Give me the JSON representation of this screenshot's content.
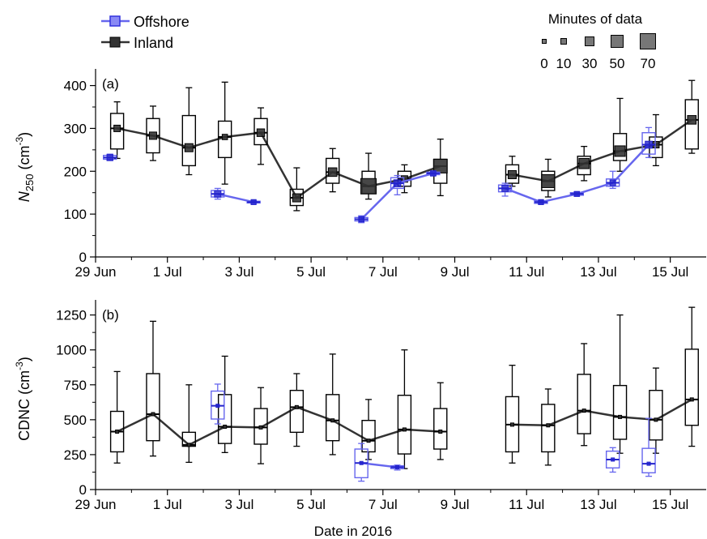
{
  "colors": {
    "offshore": "#6666ee",
    "offshore_marker": "#2222cc",
    "inland": "#333333"
  },
  "legend": {
    "offshore": "Offshore",
    "inland": "Inland"
  },
  "minutes_legend": {
    "title": "Minutes of data",
    "labels": [
      "0",
      "10",
      "30",
      "50",
      "70"
    ],
    "values": [
      0,
      10,
      30,
      50,
      70
    ]
  },
  "xlabel": "Date in 2016",
  "chart_data": [
    {
      "type": "box",
      "panel_label": "(a)",
      "ylabel_main": "N",
      "ylabel_sub": "250",
      "ylabel_unit": " (cm",
      "ylabel_exp": "-3",
      "ylabel_close": ")",
      "ylim": [
        0,
        420
      ],
      "yticks": [
        0,
        100,
        200,
        300,
        400
      ],
      "xlim": [
        0,
        17
      ],
      "xticks": [
        0,
        2,
        4,
        6,
        8,
        10,
        12,
        14,
        16
      ],
      "xtick_labels": [
        "29 Jun",
        "1 Jul",
        "3 Jul",
        "5 Jul",
        "7 Jul",
        "9 Jul",
        "11 Jul",
        "13 Jul",
        "15 Jul"
      ],
      "series": [
        {
          "name": "Inland",
          "points": [
            {
              "x": 0.6,
              "median": 300,
              "q1": 252,
              "q3": 335,
              "lo": 230,
              "hi": 362,
              "minutes": 15
            },
            {
              "x": 1.6,
              "median": 283,
              "q1": 243,
              "q3": 323,
              "lo": 225,
              "hi": 352,
              "minutes": 20
            },
            {
              "x": 2.6,
              "median": 255,
              "q1": 213,
              "q3": 330,
              "lo": 192,
              "hi": 395,
              "minutes": 25
            },
            {
              "x": 3.6,
              "median": 280,
              "q1": 232,
              "q3": 317,
              "lo": 170,
              "hi": 408,
              "minutes": 8
            },
            {
              "x": 4.6,
              "median": 290,
              "q1": 262,
              "q3": 323,
              "lo": 216,
              "hi": 348,
              "minutes": 22
            },
            {
              "x": 5.6,
              "median": 138,
              "q1": 120,
              "q3": 158,
              "lo": 108,
              "hi": 208,
              "minutes": 25
            },
            {
              "x": 6.6,
              "median": 198,
              "q1": 172,
              "q3": 230,
              "lo": 152,
              "hi": 253,
              "minutes": 28
            },
            {
              "x": 7.6,
              "median": 165,
              "q1": 148,
              "q3": 200,
              "lo": 135,
              "hi": 242,
              "minutes": 70
            },
            {
              "x": 8.6,
              "median": 182,
              "q1": 165,
              "q3": 200,
              "lo": 150,
              "hi": 215,
              "minutes": 15
            },
            {
              "x": 9.6,
              "median": 212,
              "q1": 172,
              "q3": 228,
              "lo": 143,
              "hi": 275,
              "minutes": 60
            },
            {
              "x": 11.6,
              "median": 192,
              "q1": 172,
              "q3": 215,
              "lo": 165,
              "hi": 235,
              "minutes": 25
            },
            {
              "x": 12.6,
              "median": 177,
              "q1": 155,
              "q3": 200,
              "lo": 140,
              "hi": 228,
              "minutes": 55
            },
            {
              "x": 13.6,
              "median": 218,
              "q1": 192,
              "q3": 235,
              "lo": 178,
              "hi": 258,
              "minutes": 38
            },
            {
              "x": 14.6,
              "median": 247,
              "q1": 225,
              "q3": 288,
              "lo": 200,
              "hi": 370,
              "minutes": 40
            },
            {
              "x": 15.6,
              "median": 262,
              "q1": 232,
              "q3": 280,
              "lo": 213,
              "hi": 332,
              "minutes": 15
            },
            {
              "x": 16.6,
              "median": 320,
              "q1": 252,
              "q3": 367,
              "lo": 242,
              "hi": 412,
              "minutes": 28
            }
          ],
          "line_segments": [
            [
              0,
              9
            ],
            [
              10,
              15
            ]
          ]
        },
        {
          "name": "Offshore",
          "points": [
            {
              "x": 0.4,
              "median": 232,
              "q1": 228,
              "q3": 237,
              "lo": 225,
              "hi": 240,
              "minutes": 12
            },
            {
              "x": 3.4,
              "median": 147,
              "q1": 140,
              "q3": 155,
              "lo": 135,
              "hi": 160,
              "minutes": 15
            },
            {
              "x": 4.4,
              "median": 128,
              "q1": 126,
              "q3": 130,
              "lo": 125,
              "hi": 131,
              "minutes": 6
            },
            {
              "x": 7.4,
              "median": 88,
              "q1": 84,
              "q3": 92,
              "lo": 80,
              "hi": 96,
              "minutes": 8
            },
            {
              "x": 8.4,
              "median": 172,
              "q1": 160,
              "q3": 185,
              "lo": 145,
              "hi": 190,
              "minutes": 18
            },
            {
              "x": 9.4,
              "median": 195,
              "q1": 192,
              "q3": 198,
              "lo": 190,
              "hi": 200,
              "minutes": 8
            },
            {
              "x": 11.4,
              "median": 160,
              "q1": 152,
              "q3": 168,
              "lo": 142,
              "hi": 172,
              "minutes": 14
            },
            {
              "x": 12.4,
              "median": 128,
              "q1": 125,
              "q3": 131,
              "lo": 124,
              "hi": 132,
              "minutes": 6
            },
            {
              "x": 13.4,
              "median": 147,
              "q1": 144,
              "q3": 150,
              "lo": 142,
              "hi": 152,
              "minutes": 6
            },
            {
              "x": 14.4,
              "median": 173,
              "q1": 165,
              "q3": 182,
              "lo": 160,
              "hi": 200,
              "minutes": 10
            },
            {
              "x": 15.4,
              "median": 262,
              "q1": 240,
              "q3": 290,
              "lo": 232,
              "hi": 302,
              "minutes": 18
            }
          ],
          "line_segments": [
            [
              0,
              0
            ],
            [
              1,
              2
            ],
            [
              3,
              5
            ],
            [
              6,
              10
            ]
          ]
        }
      ]
    },
    {
      "type": "box",
      "panel_label": "(b)",
      "ylabel_main": "CDNC",
      "ylabel_sub": "",
      "ylabel_unit": " (cm",
      "ylabel_exp": "-3",
      "ylabel_close": ")",
      "ylim": [
        0,
        1300
      ],
      "yticks": [
        0,
        250,
        500,
        750,
        1000,
        1250
      ],
      "xlim": [
        0,
        17
      ],
      "xticks": [
        0,
        2,
        4,
        6,
        8,
        10,
        12,
        14,
        16
      ],
      "xtick_labels": [
        "29 Jun",
        "1 Jul",
        "3 Jul",
        "5 Jul",
        "7 Jul",
        "9 Jul",
        "11 Jul",
        "13 Jul",
        "15 Jul"
      ],
      "series": [
        {
          "name": "Inland",
          "points": [
            {
              "x": 0.6,
              "median": 415,
              "q1": 270,
              "q3": 560,
              "lo": 190,
              "hi": 845
            },
            {
              "x": 1.6,
              "median": 540,
              "q1": 350,
              "q3": 830,
              "lo": 240,
              "hi": 1205
            },
            {
              "x": 2.6,
              "median": 320,
              "q1": 310,
              "q3": 410,
              "lo": 195,
              "hi": 750
            },
            {
              "x": 3.6,
              "median": 450,
              "q1": 330,
              "q3": 680,
              "lo": 265,
              "hi": 955
            },
            {
              "x": 4.6,
              "median": 445,
              "q1": 325,
              "q3": 580,
              "lo": 185,
              "hi": 730
            },
            {
              "x": 5.6,
              "median": 590,
              "q1": 410,
              "q3": 710,
              "lo": 310,
              "hi": 830
            },
            {
              "x": 6.6,
              "median": 495,
              "q1": 350,
              "q3": 680,
              "lo": 250,
              "hi": 970
            },
            {
              "x": 7.6,
              "median": 350,
              "q1": 270,
              "q3": 495,
              "lo": 215,
              "hi": 645
            },
            {
              "x": 8.6,
              "median": 430,
              "q1": 255,
              "q3": 675,
              "lo": 150,
              "hi": 1000
            },
            {
              "x": 9.6,
              "median": 415,
              "q1": 290,
              "q3": 580,
              "lo": 215,
              "hi": 765
            },
            {
              "x": 11.6,
              "median": 465,
              "q1": 270,
              "q3": 665,
              "lo": 190,
              "hi": 890
            },
            {
              "x": 12.6,
              "median": 460,
              "q1": 270,
              "q3": 610,
              "lo": 175,
              "hi": 720
            },
            {
              "x": 13.6,
              "median": 565,
              "q1": 400,
              "q3": 825,
              "lo": 315,
              "hi": 1045
            },
            {
              "x": 14.6,
              "median": 520,
              "q1": 360,
              "q3": 745,
              "lo": 260,
              "hi": 1250
            },
            {
              "x": 15.6,
              "median": 500,
              "q1": 355,
              "q3": 710,
              "lo": 260,
              "hi": 870
            },
            {
              "x": 16.6,
              "median": 645,
              "q1": 460,
              "q3": 1005,
              "lo": 310,
              "hi": 1305
            }
          ],
          "line_segments": [
            [
              0,
              9
            ],
            [
              10,
              15
            ]
          ]
        },
        {
          "name": "Offshore",
          "points": [
            {
              "x": 3.4,
              "median": 600,
              "q1": 505,
              "q3": 705,
              "lo": 470,
              "hi": 755
            },
            {
              "x": 7.4,
              "median": 190,
              "q1": 85,
              "q3": 290,
              "lo": 60,
              "hi": 330
            },
            {
              "x": 8.4,
              "median": 160,
              "q1": 150,
              "q3": 170,
              "lo": 140,
              "hi": 175
            },
            {
              "x": 14.4,
              "median": 215,
              "q1": 155,
              "q3": 275,
              "lo": 125,
              "hi": 300
            },
            {
              "x": 15.4,
              "median": 185,
              "q1": 120,
              "q3": 295,
              "lo": 95,
              "hi": 510
            }
          ],
          "line_segments": [
            [
              1,
              2
            ]
          ]
        }
      ]
    }
  ]
}
